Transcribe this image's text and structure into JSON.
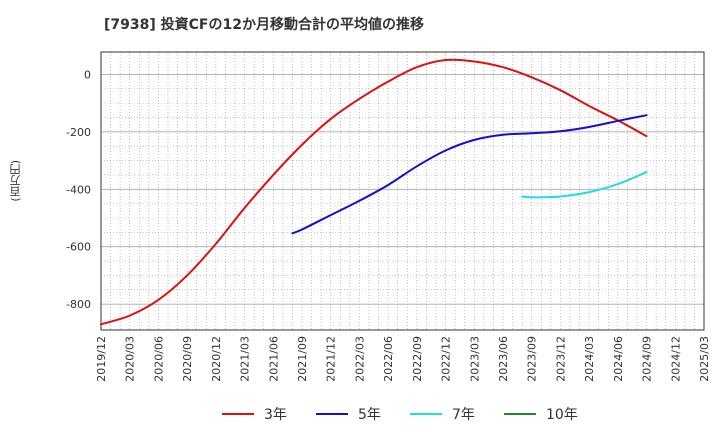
{
  "title": "[7938]  投資CFの12か月移動合計の平均値の推移",
  "chart_data": {
    "type": "line",
    "title": "[7938]  投資CFの12か月移動合計の平均値の推移",
    "ylabel": "(百万円)",
    "xlabel": "",
    "ylim": [
      -890,
      78
    ],
    "yticks": [
      0,
      -200,
      -400,
      -600,
      -800
    ],
    "x_ticks": [
      "2019/12",
      "2020/03",
      "2020/06",
      "2020/09",
      "2020/12",
      "2021/03",
      "2021/06",
      "2021/09",
      "2021/12",
      "2022/03",
      "2022/06",
      "2022/09",
      "2022/12",
      "2023/03",
      "2023/06",
      "2023/09",
      "2023/12",
      "2024/03",
      "2024/06",
      "2024/09",
      "2024/12",
      "2025/03"
    ],
    "grid": true,
    "legend_position": "bottom",
    "series": [
      {
        "name": "3年",
        "color": "#dd1111",
        "points": [
          [
            "2019/12",
            -870
          ],
          [
            "2020/03",
            -840
          ],
          [
            "2020/06",
            -785
          ],
          [
            "2020/09",
            -700
          ],
          [
            "2020/12",
            -590
          ],
          [
            "2021/03",
            -465
          ],
          [
            "2021/06",
            -350
          ],
          [
            "2021/09",
            -245
          ],
          [
            "2021/12",
            -155
          ],
          [
            "2022/03",
            -85
          ],
          [
            "2022/06",
            -25
          ],
          [
            "2022/09",
            25
          ],
          [
            "2022/12",
            50
          ],
          [
            "2023/03",
            45
          ],
          [
            "2023/06",
            25
          ],
          [
            "2023/09",
            -10
          ],
          [
            "2023/12",
            -55
          ],
          [
            "2024/03",
            -110
          ],
          [
            "2024/06",
            -160
          ],
          [
            "2024/09",
            -215
          ]
        ]
      },
      {
        "name": "5年",
        "color": "#1111cc",
        "points": [
          [
            "2021/08",
            -553
          ],
          [
            "2021/09",
            -540
          ],
          [
            "2021/12",
            -490
          ],
          [
            "2022/03",
            -440
          ],
          [
            "2022/06",
            -385
          ],
          [
            "2022/09",
            -320
          ],
          [
            "2022/12",
            -265
          ],
          [
            "2023/03",
            -228
          ],
          [
            "2023/06",
            -210
          ],
          [
            "2023/09",
            -205
          ],
          [
            "2023/12",
            -198
          ],
          [
            "2024/03",
            -183
          ],
          [
            "2024/06",
            -162
          ],
          [
            "2024/09",
            -142
          ]
        ]
      },
      {
        "name": "7年",
        "color": "#22dddd",
        "points": [
          [
            "2023/08",
            -425
          ],
          [
            "2023/09",
            -428
          ],
          [
            "2023/12",
            -425
          ],
          [
            "2024/03",
            -410
          ],
          [
            "2024/06",
            -382
          ],
          [
            "2024/09",
            -340
          ]
        ]
      },
      {
        "name": "10年",
        "color": "#228822",
        "points": []
      }
    ]
  }
}
